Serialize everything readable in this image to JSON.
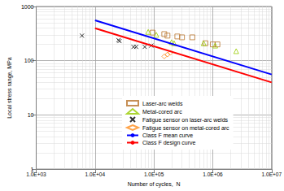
{
  "chart_data": {
    "type": "scatter",
    "log": true,
    "grid": true,
    "legend": "bottom",
    "x_label": "Number of cycles,  N",
    "y_label": "Local stress range, MPa",
    "xlim": [
      1000,
      10000000
    ],
    "ylim": [
      1,
      1000
    ],
    "xticks": [
      {
        "value": 1000,
        "label": "1.0E+03"
      },
      {
        "value": 10000,
        "label": "1.0E+04"
      },
      {
        "value": 100000,
        "label": "1.0E+05"
      },
      {
        "value": 1000000,
        "label": "1.0E+06"
      },
      {
        "value": 10000000,
        "label": "1.0E+07"
      }
    ],
    "yticks": [
      1,
      10,
      100,
      1000
    ],
    "series": [
      {
        "name": "Laser-arc welds",
        "type": "scatter",
        "marker": "square",
        "color": "#b8742c",
        "x": [
          95000,
          150000,
          170000,
          250000,
          300000,
          450000,
          750000,
          1000000,
          1200000
        ],
        "values": [
          330,
          310,
          290,
          280,
          270,
          270,
          210,
          200,
          200
        ]
      },
      {
        "name": "Metal-cored arc",
        "type": "scatter",
        "marker": "triangle",
        "color": "#99cc00",
        "x": [
          80000,
          110000,
          200000,
          220000,
          700000,
          1100000,
          2500000
        ],
        "values": [
          340,
          300,
          220,
          210,
          210,
          190,
          150
        ]
      },
      {
        "name": "Fatigue sensor on laser-arc welds",
        "type": "scatter",
        "marker": "x",
        "color": "#000000",
        "x": [
          6000,
          25000,
          26000,
          45000,
          50000,
          70000,
          90000
        ],
        "values": [
          290,
          240,
          230,
          180,
          180,
          180,
          190
        ]
      },
      {
        "name": "Fatigue sensor on metal-cored arc",
        "type": "scatter",
        "marker": "diamond",
        "color": "#ff8c1a",
        "x": [
          150000,
          170000,
          190000
        ],
        "values": [
          120,
          130,
          140
        ]
      },
      {
        "name": "Class F mean curve",
        "type": "line",
        "color": "#0000ff",
        "x": [
          10000,
          10000000
        ],
        "values": [
          557,
          55.7
        ]
      },
      {
        "name": "Class F design curve",
        "type": "line",
        "color": "#ff0000",
        "x": [
          10000,
          10000000
        ],
        "values": [
          398,
          39.8
        ]
      }
    ]
  }
}
